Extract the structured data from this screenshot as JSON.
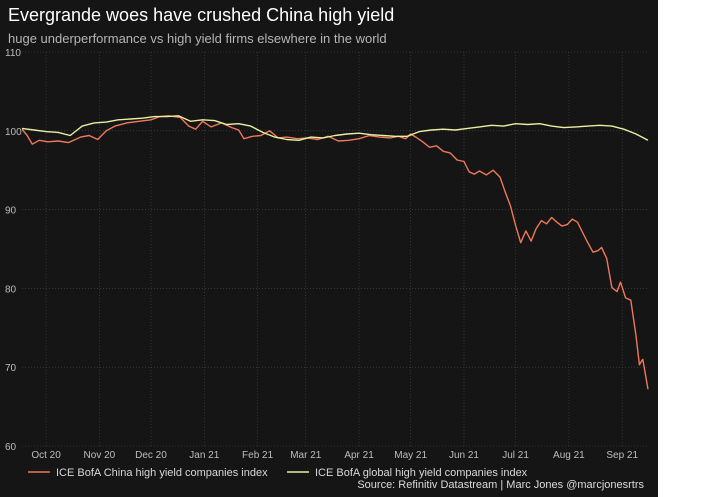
{
  "title": "Evergrande woes have crushed China high yield",
  "subtitle": "huge underperformance vs high yield firms elsewhere in the world",
  "source": "Source: Refinitiv Datastream | Marc Jones @marcjonesrtrs",
  "colors": {
    "background": "#151515",
    "china": "#f0785a",
    "global": "#e8efa0",
    "grid": "#4a4a4a"
  },
  "chart_data": {
    "type": "line",
    "title": "Evergrande woes have crushed China high yield",
    "subtitle": "huge underperformance vs high yield firms elsewhere in the world",
    "xlabel": "",
    "ylabel": "",
    "ylim": [
      60,
      110
    ],
    "yticks": [
      60,
      70,
      80,
      90,
      100,
      110
    ],
    "xlim": [
      "2020-10-01",
      "2021-09-30"
    ],
    "x_tick_labels": [
      "Oct 20",
      "Nov 20",
      "Dec 20",
      "Jan 21",
      "Feb 21",
      "Mar 21",
      "Apr 21",
      "May 21",
      "Jun 21",
      "Jul 21",
      "Aug 21",
      "Sep 21"
    ],
    "x_tick_dates": [
      "2020-10-15",
      "2020-11-15",
      "2020-12-15",
      "2021-01-15",
      "2021-02-15",
      "2021-03-15",
      "2021-04-15",
      "2021-05-15",
      "2021-06-15",
      "2021-07-15",
      "2021-08-15",
      "2021-09-15"
    ],
    "grid": true,
    "legend_position": "bottom-left",
    "series": [
      {
        "name": "ICE BofA China high yield companies index",
        "color": "#f0785a",
        "points": [
          [
            "2020-10-01",
            100.2
          ],
          [
            "2020-10-04",
            99.4
          ],
          [
            "2020-10-07",
            98.3
          ],
          [
            "2020-10-11",
            98.8
          ],
          [
            "2020-10-16",
            98.6
          ],
          [
            "2020-10-22",
            98.7
          ],
          [
            "2020-10-28",
            98.5
          ],
          [
            "2020-11-04",
            99.2
          ],
          [
            "2020-11-09",
            99.4
          ],
          [
            "2020-11-14",
            98.9
          ],
          [
            "2020-11-19",
            100.0
          ],
          [
            "2020-11-24",
            100.6
          ],
          [
            "2020-12-01",
            101.0
          ],
          [
            "2020-12-08",
            101.2
          ],
          [
            "2020-12-15",
            101.4
          ],
          [
            "2020-12-20",
            101.8
          ],
          [
            "2020-12-25",
            101.9
          ],
          [
            "2021-01-01",
            101.7
          ],
          [
            "2021-01-06",
            100.6
          ],
          [
            "2021-01-10",
            100.2
          ],
          [
            "2021-01-14",
            101.2
          ],
          [
            "2021-01-19",
            100.5
          ],
          [
            "2021-01-25",
            101.0
          ],
          [
            "2021-01-31",
            100.4
          ],
          [
            "2021-02-04",
            100.1
          ],
          [
            "2021-02-07",
            99.0
          ],
          [
            "2021-02-12",
            99.3
          ],
          [
            "2021-02-17",
            99.4
          ],
          [
            "2021-02-22",
            100.0
          ],
          [
            "2021-02-27",
            99.1
          ],
          [
            "2021-03-04",
            99.2
          ],
          [
            "2021-03-10",
            99.0
          ],
          [
            "2021-03-16",
            99.1
          ],
          [
            "2021-03-22",
            98.9
          ],
          [
            "2021-03-28",
            99.3
          ],
          [
            "2021-04-03",
            98.7
          ],
          [
            "2021-04-09",
            98.8
          ],
          [
            "2021-04-15",
            99.0
          ],
          [
            "2021-04-21",
            99.4
          ],
          [
            "2021-04-27",
            99.2
          ],
          [
            "2021-05-03",
            99.1
          ],
          [
            "2021-05-08",
            99.3
          ],
          [
            "2021-05-12",
            99.0
          ],
          [
            "2021-05-15",
            99.6
          ],
          [
            "2021-05-18",
            99.2
          ],
          [
            "2021-05-22",
            98.6
          ],
          [
            "2021-05-26",
            97.9
          ],
          [
            "2021-05-30",
            98.1
          ],
          [
            "2021-06-03",
            97.4
          ],
          [
            "2021-06-07",
            97.2
          ],
          [
            "2021-06-11",
            96.3
          ],
          [
            "2021-06-15",
            96.1
          ],
          [
            "2021-06-18",
            94.8
          ],
          [
            "2021-06-21",
            94.5
          ],
          [
            "2021-06-24",
            94.9
          ],
          [
            "2021-06-28",
            94.4
          ],
          [
            "2021-07-02",
            95.0
          ],
          [
            "2021-07-06",
            94.1
          ],
          [
            "2021-07-09",
            92.2
          ],
          [
            "2021-07-12",
            90.5
          ],
          [
            "2021-07-15",
            88.0
          ],
          [
            "2021-07-18",
            85.8
          ],
          [
            "2021-07-21",
            87.3
          ],
          [
            "2021-07-24",
            86.0
          ],
          [
            "2021-07-27",
            87.6
          ],
          [
            "2021-07-30",
            88.6
          ],
          [
            "2021-08-02",
            88.2
          ],
          [
            "2021-08-05",
            89.0
          ],
          [
            "2021-08-08",
            88.4
          ],
          [
            "2021-08-11",
            87.9
          ],
          [
            "2021-08-14",
            88.1
          ],
          [
            "2021-08-17",
            88.8
          ],
          [
            "2021-08-20",
            88.4
          ],
          [
            "2021-08-23",
            87.1
          ],
          [
            "2021-08-26",
            85.8
          ],
          [
            "2021-08-29",
            84.6
          ],
          [
            "2021-09-01",
            84.8
          ],
          [
            "2021-09-03",
            85.2
          ],
          [
            "2021-09-06",
            83.8
          ],
          [
            "2021-09-09",
            80.1
          ],
          [
            "2021-09-12",
            79.6
          ],
          [
            "2021-09-14",
            80.8
          ],
          [
            "2021-09-17",
            78.8
          ],
          [
            "2021-09-20",
            78.5
          ],
          [
            "2021-09-23",
            74.0
          ],
          [
            "2021-09-25",
            70.3
          ],
          [
            "2021-09-27",
            71.0
          ],
          [
            "2021-09-30",
            67.2
          ]
        ]
      },
      {
        "name": "ICE BofA global high yield companies index",
        "color": "#e8efa0",
        "points": [
          [
            "2020-10-01",
            100.3
          ],
          [
            "2020-10-08",
            100.1
          ],
          [
            "2020-10-15",
            99.9
          ],
          [
            "2020-10-22",
            99.8
          ],
          [
            "2020-10-29",
            99.4
          ],
          [
            "2020-11-05",
            100.6
          ],
          [
            "2020-11-12",
            101.0
          ],
          [
            "2020-11-19",
            101.1
          ],
          [
            "2020-11-26",
            101.4
          ],
          [
            "2020-12-03",
            101.5
          ],
          [
            "2020-12-10",
            101.6
          ],
          [
            "2020-12-17",
            101.8
          ],
          [
            "2020-12-24",
            101.8
          ],
          [
            "2020-12-31",
            101.9
          ],
          [
            "2021-01-07",
            101.2
          ],
          [
            "2021-01-14",
            101.4
          ],
          [
            "2021-01-21",
            101.3
          ],
          [
            "2021-01-28",
            100.8
          ],
          [
            "2021-02-04",
            100.9
          ],
          [
            "2021-02-11",
            100.6
          ],
          [
            "2021-02-18",
            99.8
          ],
          [
            "2021-02-25",
            99.2
          ],
          [
            "2021-03-04",
            98.9
          ],
          [
            "2021-03-11",
            98.8
          ],
          [
            "2021-03-18",
            99.2
          ],
          [
            "2021-03-25",
            99.1
          ],
          [
            "2021-04-01",
            99.4
          ],
          [
            "2021-04-08",
            99.6
          ],
          [
            "2021-04-15",
            99.7
          ],
          [
            "2021-04-22",
            99.5
          ],
          [
            "2021-04-29",
            99.4
          ],
          [
            "2021-05-06",
            99.3
          ],
          [
            "2021-05-13",
            99.3
          ],
          [
            "2021-05-20",
            99.9
          ],
          [
            "2021-05-27",
            100.1
          ],
          [
            "2021-06-03",
            100.2
          ],
          [
            "2021-06-10",
            100.1
          ],
          [
            "2021-06-17",
            100.3
          ],
          [
            "2021-06-24",
            100.5
          ],
          [
            "2021-07-01",
            100.7
          ],
          [
            "2021-07-08",
            100.6
          ],
          [
            "2021-07-15",
            100.9
          ],
          [
            "2021-07-22",
            100.8
          ],
          [
            "2021-07-29",
            100.9
          ],
          [
            "2021-08-05",
            100.6
          ],
          [
            "2021-08-12",
            100.4
          ],
          [
            "2021-08-19",
            100.5
          ],
          [
            "2021-08-26",
            100.6
          ],
          [
            "2021-09-02",
            100.7
          ],
          [
            "2021-09-09",
            100.6
          ],
          [
            "2021-09-16",
            100.2
          ],
          [
            "2021-09-23",
            99.6
          ],
          [
            "2021-09-30",
            98.8
          ]
        ]
      }
    ]
  }
}
